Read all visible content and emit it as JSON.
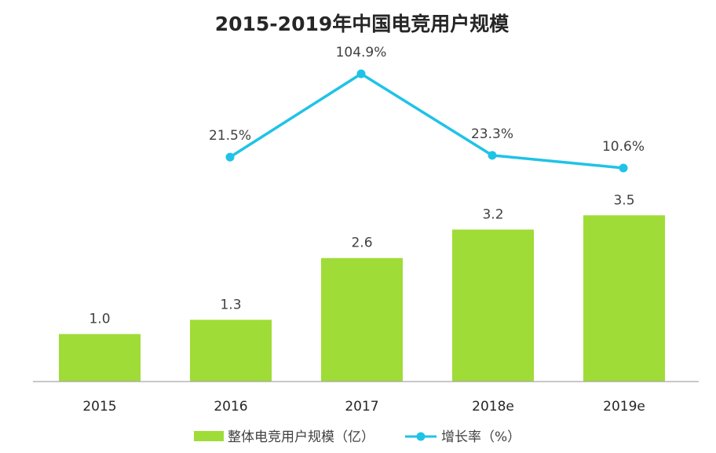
{
  "chart_data": {
    "type": "bar",
    "title": "2015-2019年中国电竞用户规模",
    "categories": [
      "2015",
      "2016",
      "2017",
      "2018e",
      "2019e"
    ],
    "series": [
      {
        "name": "整体电竞用户规模（亿）",
        "type": "bar",
        "axis": "left",
        "color": "#9fdc37",
        "values": [
          1.0,
          1.3,
          2.6,
          3.2,
          3.5
        ],
        "labels": [
          "1.0",
          "1.3",
          "2.6",
          "3.2",
          "3.5"
        ]
      },
      {
        "name": "增长率（%）",
        "type": "line",
        "axis": "right",
        "color": "#1fc3e6",
        "values": [
          null,
          21.5,
          104.9,
          23.3,
          10.6
        ],
        "labels": [
          "",
          "21.5%",
          "104.9%",
          "23.3%",
          "10.6%"
        ]
      }
    ],
    "ylim_left": [
      0,
      5
    ],
    "ylim_right": [
      -120,
      150
    ],
    "grid": false,
    "legend_position": "bottom"
  }
}
